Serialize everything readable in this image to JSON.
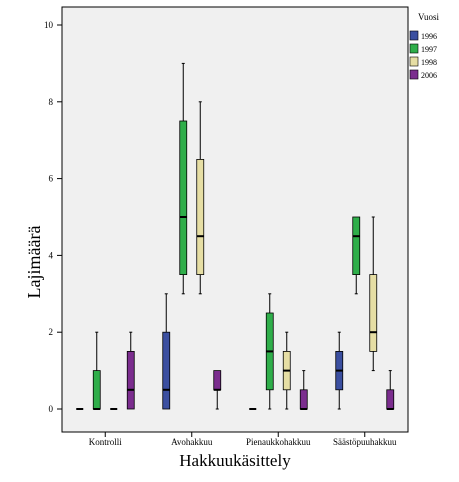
{
  "chart_data": {
    "type": "boxplot",
    "xlabel": "Hakkuukäsittely",
    "ylabel": "Lajimäärä",
    "ylim": [
      0,
      10.5
    ],
    "yticks": [
      0,
      2,
      4,
      6,
      8,
      10
    ],
    "grid": false,
    "legend_title": "Vuosi",
    "legend_position": "top-right",
    "categories": [
      "Kontrolli",
      "Avohakkuu",
      "Pienaukkohakkuu",
      "Säästöpuuhakkuu"
    ],
    "series": [
      {
        "name": "1996",
        "color": "#3b4fa0",
        "boxes": [
          {
            "min": 0,
            "q1": 0,
            "median": 0,
            "q3": 0,
            "max": 0
          },
          {
            "min": 0,
            "q1": 0,
            "median": 0.5,
            "q3": 2,
            "max": 3
          },
          {
            "min": 0,
            "q1": 0,
            "median": 0,
            "q3": 0,
            "max": 0
          },
          {
            "min": 0,
            "q1": 0.5,
            "median": 1,
            "q3": 1.5,
            "max": 2
          }
        ]
      },
      {
        "name": "1997",
        "color": "#2fae4a",
        "boxes": [
          {
            "min": 0,
            "q1": 0,
            "median": 0,
            "q3": 1,
            "max": 2
          },
          {
            "min": 3,
            "q1": 3.5,
            "median": 5,
            "q3": 7.5,
            "max": 9
          },
          {
            "min": 0,
            "q1": 0.5,
            "median": 1.5,
            "q3": 2.5,
            "max": 3
          },
          {
            "min": 3,
            "q1": 3.5,
            "median": 4.5,
            "q3": 5,
            "max": 5
          }
        ]
      },
      {
        "name": "1998",
        "color": "#e6dea4",
        "boxes": [
          {
            "min": 0,
            "q1": 0,
            "median": 0,
            "q3": 0,
            "max": 0
          },
          {
            "min": 3,
            "q1": 3.5,
            "median": 4.5,
            "q3": 6.5,
            "max": 8
          },
          {
            "min": 0,
            "q1": 0.5,
            "median": 1,
            "q3": 1.5,
            "max": 2
          },
          {
            "min": 1,
            "q1": 1.5,
            "median": 2,
            "q3": 3.5,
            "max": 5
          }
        ]
      },
      {
        "name": "2006",
        "color": "#7b2d8e",
        "boxes": [
          {
            "min": 0,
            "q1": 0,
            "median": 0.5,
            "q3": 1.5,
            "max": 2
          },
          {
            "min": 0,
            "q1": 0.5,
            "median": 0.5,
            "q3": 1,
            "max": 1
          },
          {
            "min": 0,
            "q1": 0,
            "median": 0,
            "q3": 0.5,
            "max": 1
          },
          {
            "min": 0,
            "q1": 0,
            "median": 0,
            "q3": 0.5,
            "max": 1
          }
        ]
      }
    ]
  }
}
